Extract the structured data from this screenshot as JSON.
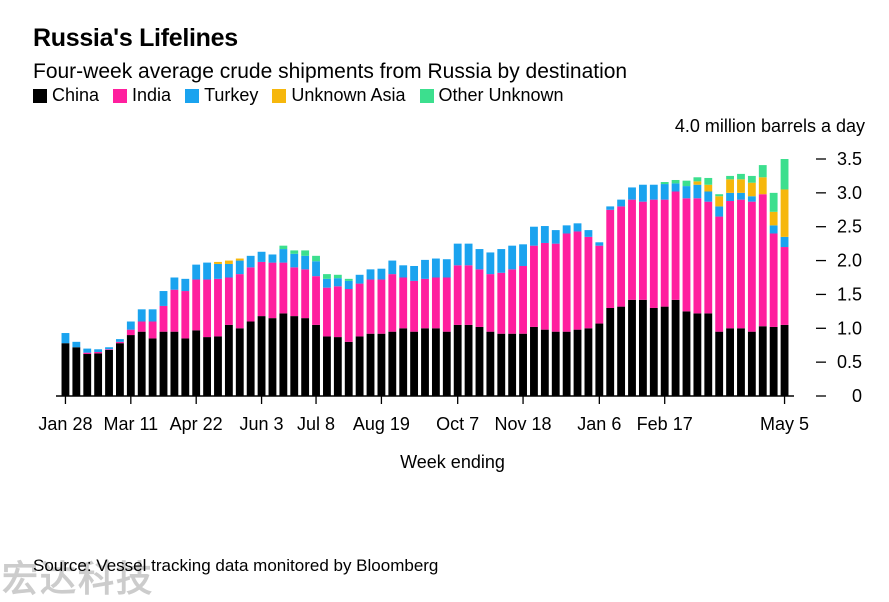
{
  "header": {
    "title": "Russia's Lifelines",
    "subtitle": "Four-week average crude shipments from Russia by destination"
  },
  "legend": [
    {
      "label": "China",
      "color": "#000000"
    },
    {
      "label": "India",
      "color": "#ff1f9e"
    },
    {
      "label": "Turkey",
      "color": "#1aa3ef"
    },
    {
      "label": "Unknown Asia",
      "color": "#f6b70c"
    },
    {
      "label": "Other Unknown",
      "color": "#3cdf8e"
    }
  ],
  "unit_label": "4.0 million barrels a day",
  "xlabel": "Week ending",
  "source": "Source: Vessel tracking data monitored by Bloomberg",
  "watermark": "宏达科技",
  "chart_data": {
    "type": "bar",
    "stacked": true,
    "title": "Russia's Lifelines",
    "subtitle": "Four-week average crude shipments from Russia by destination",
    "xlabel": "Week ending",
    "ylabel": "4.0 million barrels a day",
    "ylim": [
      0,
      3.5
    ],
    "yticks": [
      "0",
      "0.5",
      "1.0",
      "1.5",
      "2.0",
      "2.5",
      "3.0",
      "3.5"
    ],
    "ytick_values": [
      0,
      0.5,
      1.0,
      1.5,
      2.0,
      2.5,
      3.0,
      3.5
    ],
    "xtick_labels": [
      "Jan 28",
      "Mar 11",
      "Apr 22",
      "Jun 3",
      "Jul 8",
      "Aug 19",
      "Oct 7",
      "Nov 18",
      "Jan 6",
      "Feb 17",
      "May 5"
    ],
    "xtick_index": [
      0,
      6,
      12,
      18,
      23,
      29,
      36,
      42,
      49,
      55,
      66
    ],
    "grid": false,
    "legend_position": "top-left",
    "series": [
      {
        "name": "China",
        "color": "#000000",
        "values": [
          0.78,
          0.72,
          0.62,
          0.63,
          0.68,
          0.78,
          0.9,
          0.95,
          0.85,
          0.95,
          0.95,
          0.85,
          0.97,
          0.87,
          0.88,
          1.05,
          1.0,
          1.1,
          1.18,
          1.15,
          1.22,
          1.18,
          1.15,
          1.05,
          0.88,
          0.87,
          0.8,
          0.88,
          0.92,
          0.92,
          0.95,
          1.0,
          0.95,
          1.0,
          1.0,
          0.95,
          1.05,
          1.05,
          1.02,
          0.95,
          0.92,
          0.92,
          0.92,
          1.02,
          0.98,
          0.95,
          0.95,
          0.98,
          1.0,
          1.07,
          1.3,
          1.32,
          1.42,
          1.42,
          1.3,
          1.32,
          1.42,
          1.25,
          1.22,
          1.22,
          0.95,
          1.0,
          1.0,
          0.95,
          1.03,
          1.02,
          1.05
        ]
      },
      {
        "name": "India",
        "color": "#ff1f9e",
        "values": [
          0.0,
          0.0,
          0.02,
          0.02,
          0.01,
          0.02,
          0.08,
          0.15,
          0.25,
          0.38,
          0.62,
          0.7,
          0.75,
          0.85,
          0.85,
          0.7,
          0.8,
          0.8,
          0.8,
          0.82,
          0.75,
          0.72,
          0.72,
          0.72,
          0.72,
          0.75,
          0.78,
          0.78,
          0.8,
          0.8,
          0.85,
          0.75,
          0.75,
          0.73,
          0.75,
          0.8,
          0.88,
          0.88,
          0.85,
          0.85,
          0.9,
          0.95,
          1.0,
          1.2,
          1.28,
          1.3,
          1.45,
          1.45,
          1.35,
          1.15,
          1.45,
          1.48,
          1.48,
          1.45,
          1.6,
          1.58,
          1.6,
          1.67,
          1.7,
          1.65,
          1.7,
          1.88,
          1.9,
          1.92,
          1.95,
          1.38,
          1.15
        ]
      },
      {
        "name": "Turkey",
        "color": "#1aa3ef",
        "values": [
          0.15,
          0.08,
          0.06,
          0.04,
          0.03,
          0.04,
          0.12,
          0.18,
          0.18,
          0.22,
          0.18,
          0.18,
          0.22,
          0.25,
          0.22,
          0.2,
          0.2,
          0.17,
          0.15,
          0.12,
          0.2,
          0.2,
          0.2,
          0.22,
          0.13,
          0.12,
          0.12,
          0.13,
          0.15,
          0.16,
          0.2,
          0.18,
          0.22,
          0.28,
          0.28,
          0.27,
          0.32,
          0.32,
          0.3,
          0.32,
          0.35,
          0.35,
          0.32,
          0.28,
          0.25,
          0.2,
          0.12,
          0.12,
          0.1,
          0.05,
          0.05,
          0.1,
          0.18,
          0.25,
          0.22,
          0.23,
          0.12,
          0.18,
          0.2,
          0.15,
          0.15,
          0.12,
          0.1,
          0.08,
          0.0,
          0.12,
          0.15
        ]
      },
      {
        "name": "Unknown Asia",
        "color": "#f6b70c",
        "values": [
          0,
          0,
          0,
          0,
          0,
          0,
          0,
          0,
          0,
          0,
          0,
          0,
          0,
          0,
          0.03,
          0.05,
          0.03,
          0,
          0,
          0,
          0,
          0,
          0,
          0,
          0,
          0,
          0,
          0,
          0,
          0,
          0,
          0,
          0,
          0,
          0,
          0,
          0,
          0,
          0,
          0,
          0,
          0,
          0,
          0,
          0,
          0,
          0,
          0,
          0,
          0,
          0,
          0,
          0,
          0,
          0,
          0,
          0,
          0,
          0.05,
          0.1,
          0.15,
          0.2,
          0.2,
          0.2,
          0.25,
          0.2,
          0.7
        ]
      },
      {
        "name": "Other Unknown",
        "color": "#3cdf8e",
        "values": [
          0,
          0,
          0,
          0,
          0,
          0,
          0,
          0,
          0,
          0,
          0,
          0,
          0,
          0,
          0,
          0,
          0,
          0,
          0,
          0,
          0.05,
          0.05,
          0.08,
          0.08,
          0.07,
          0.05,
          0.03,
          0,
          0,
          0,
          0,
          0,
          0,
          0,
          0,
          0,
          0,
          0,
          0,
          0,
          0,
          0,
          0,
          0,
          0,
          0,
          0,
          0,
          0,
          0,
          0,
          0,
          0,
          0,
          0,
          0.03,
          0.05,
          0.08,
          0.06,
          0.1,
          0.03,
          0.05,
          0.08,
          0.1,
          0.18,
          0.28,
          0.45
        ]
      }
    ]
  }
}
